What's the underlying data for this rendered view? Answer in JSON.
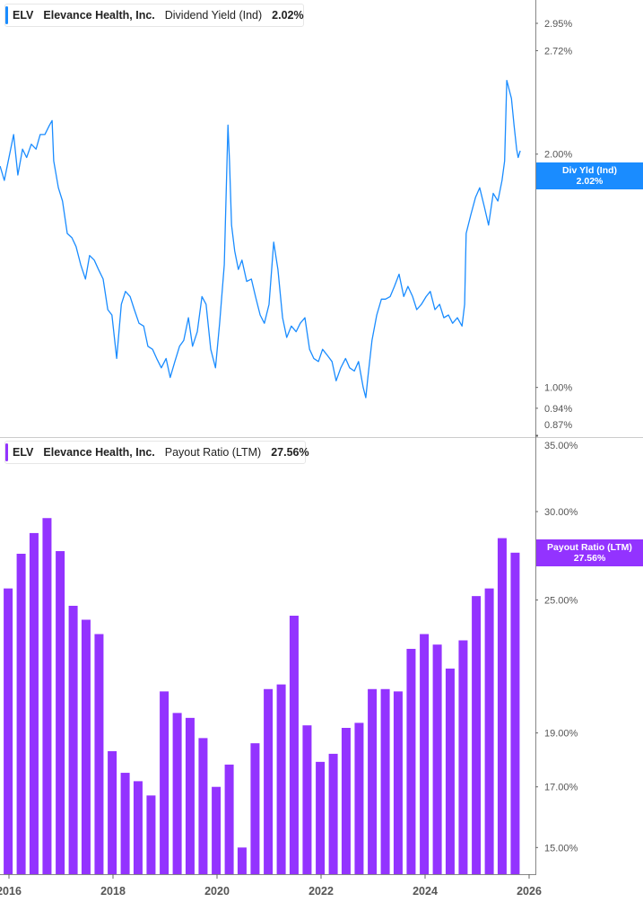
{
  "colors": {
    "yield": "#1a8cff",
    "payout": "#9333ff",
    "axis": "#888888",
    "grid": "#dddddd"
  },
  "top_legend": {
    "ticker": "ELV",
    "company": "Elevance Health, Inc.",
    "metric": "Dividend Yield (Ind)",
    "value": "2.02%"
  },
  "bottom_legend": {
    "ticker": "ELV",
    "company": "Elevance Health, Inc.",
    "metric": "Payout Ratio (LTM)",
    "value": "27.56%"
  },
  "top_tag": {
    "label": "Div Yld (Ind)",
    "value": "2.02%"
  },
  "bottom_tag": {
    "label": "Payout Ratio (LTM)",
    "value": "27.56%"
  },
  "chart_data": [
    {
      "type": "line",
      "scale": "log",
      "series_name": "Dividend Yield (Ind)",
      "unit": "%",
      "y_ticks": [
        "2.95%",
        "2.72%",
        "2.00%",
        "1.00%",
        "0.94%",
        "0.87%"
      ],
      "y_tick_values": [
        2.95,
        2.72,
        2.0,
        1.0,
        0.94,
        0.87
      ],
      "ylim": [
        0.87,
        3.05
      ],
      "points": [
        [
          2015.83,
          1.93
        ],
        [
          2015.91,
          1.85
        ],
        [
          2016.0,
          1.98
        ],
        [
          2016.09,
          2.12
        ],
        [
          2016.17,
          1.88
        ],
        [
          2016.26,
          2.03
        ],
        [
          2016.34,
          1.98
        ],
        [
          2016.43,
          2.06
        ],
        [
          2016.52,
          2.03
        ],
        [
          2016.6,
          2.12
        ],
        [
          2016.69,
          2.12
        ],
        [
          2016.78,
          2.18
        ],
        [
          2016.83,
          2.21
        ],
        [
          2016.86,
          1.96
        ],
        [
          2016.95,
          1.81
        ],
        [
          2017.03,
          1.74
        ],
        [
          2017.12,
          1.58
        ],
        [
          2017.21,
          1.56
        ],
        [
          2017.29,
          1.52
        ],
        [
          2017.38,
          1.44
        ],
        [
          2017.47,
          1.38
        ],
        [
          2017.55,
          1.48
        ],
        [
          2017.64,
          1.46
        ],
        [
          2017.72,
          1.42
        ],
        [
          2017.81,
          1.38
        ],
        [
          2017.9,
          1.26
        ],
        [
          2017.98,
          1.24
        ],
        [
          2018.07,
          1.09
        ],
        [
          2018.16,
          1.28
        ],
        [
          2018.24,
          1.33
        ],
        [
          2018.33,
          1.31
        ],
        [
          2018.41,
          1.26
        ],
        [
          2018.5,
          1.21
        ],
        [
          2018.59,
          1.2
        ],
        [
          2018.67,
          1.13
        ],
        [
          2018.76,
          1.12
        ],
        [
          2018.84,
          1.09
        ],
        [
          2018.93,
          1.06
        ],
        [
          2019.02,
          1.09
        ],
        [
          2019.1,
          1.03
        ],
        [
          2019.19,
          1.08
        ],
        [
          2019.28,
          1.13
        ],
        [
          2019.36,
          1.15
        ],
        [
          2019.45,
          1.23
        ],
        [
          2019.53,
          1.13
        ],
        [
          2019.62,
          1.18
        ],
        [
          2019.71,
          1.31
        ],
        [
          2019.79,
          1.28
        ],
        [
          2019.88,
          1.12
        ],
        [
          2019.97,
          1.06
        ],
        [
          2020.05,
          1.21
        ],
        [
          2020.14,
          1.44
        ],
        [
          2020.21,
          2.18
        ],
        [
          2020.24,
          1.96
        ],
        [
          2020.28,
          1.62
        ],
        [
          2020.34,
          1.5
        ],
        [
          2020.41,
          1.42
        ],
        [
          2020.48,
          1.46
        ],
        [
          2020.57,
          1.37
        ],
        [
          2020.66,
          1.38
        ],
        [
          2020.74,
          1.31
        ],
        [
          2020.83,
          1.24
        ],
        [
          2020.91,
          1.21
        ],
        [
          2021.0,
          1.28
        ],
        [
          2021.09,
          1.54
        ],
        [
          2021.17,
          1.42
        ],
        [
          2021.26,
          1.23
        ],
        [
          2021.34,
          1.16
        ],
        [
          2021.43,
          1.2
        ],
        [
          2021.52,
          1.18
        ],
        [
          2021.6,
          1.21
        ],
        [
          2021.69,
          1.23
        ],
        [
          2021.78,
          1.12
        ],
        [
          2021.86,
          1.09
        ],
        [
          2021.95,
          1.08
        ],
        [
          2022.03,
          1.12
        ],
        [
          2022.12,
          1.1
        ],
        [
          2022.21,
          1.08
        ],
        [
          2022.29,
          1.02
        ],
        [
          2022.38,
          1.06
        ],
        [
          2022.47,
          1.09
        ],
        [
          2022.55,
          1.06
        ],
        [
          2022.64,
          1.05
        ],
        [
          2022.72,
          1.08
        ],
        [
          2022.81,
          1.0
        ],
        [
          2022.86,
          0.97
        ],
        [
          2022.9,
          1.03
        ],
        [
          2022.98,
          1.15
        ],
        [
          2023.07,
          1.24
        ],
        [
          2023.16,
          1.3
        ],
        [
          2023.24,
          1.3
        ],
        [
          2023.33,
          1.31
        ],
        [
          2023.41,
          1.35
        ],
        [
          2023.5,
          1.4
        ],
        [
          2023.59,
          1.31
        ],
        [
          2023.67,
          1.35
        ],
        [
          2023.76,
          1.31
        ],
        [
          2023.84,
          1.26
        ],
        [
          2023.93,
          1.28
        ],
        [
          2024.02,
          1.31
        ],
        [
          2024.1,
          1.33
        ],
        [
          2024.19,
          1.26
        ],
        [
          2024.28,
          1.28
        ],
        [
          2024.36,
          1.23
        ],
        [
          2024.45,
          1.24
        ],
        [
          2024.53,
          1.21
        ],
        [
          2024.62,
          1.23
        ],
        [
          2024.71,
          1.2
        ],
        [
          2024.76,
          1.28
        ],
        [
          2024.79,
          1.58
        ],
        [
          2024.88,
          1.67
        ],
        [
          2024.97,
          1.76
        ],
        [
          2025.05,
          1.81
        ],
        [
          2025.14,
          1.71
        ],
        [
          2025.22,
          1.62
        ],
        [
          2025.31,
          1.78
        ],
        [
          2025.4,
          1.74
        ],
        [
          2025.48,
          1.85
        ],
        [
          2025.53,
          1.96
        ],
        [
          2025.57,
          2.49
        ],
        [
          2025.66,
          2.36
        ],
        [
          2025.71,
          2.18
        ],
        [
          2025.76,
          2.03
        ],
        [
          2025.79,
          1.98
        ],
        [
          2025.83,
          2.02
        ]
      ]
    },
    {
      "type": "bar",
      "scale": "log",
      "series_name": "Payout Ratio (LTM)",
      "unit": "%",
      "y_ticks": [
        "35.00%",
        "30.00%",
        "25.00%",
        "19.00%",
        "17.00%",
        "15.00%"
      ],
      "y_tick_values": [
        35,
        30,
        25,
        19,
        17,
        15
      ],
      "ylim": [
        14.3,
        35
      ],
      "categories": [
        "2015-12-31",
        "2016-03-31",
        "2016-06-30",
        "2016-09-30",
        "2016-12-31",
        "2017-03-31",
        "2017-06-30",
        "2017-09-30",
        "2017-12-31",
        "2018-03-31",
        "2018-06-30",
        "2018-09-30",
        "2018-12-31",
        "2019-03-31",
        "2019-06-30",
        "2019-09-30",
        "2019-12-31",
        "2020-03-31",
        "2020-06-30",
        "2020-09-30",
        "2020-12-31",
        "2021-03-31",
        "2021-06-30",
        "2021-09-30",
        "2021-12-31",
        "2022-03-31",
        "2022-06-30",
        "2022-09-30",
        "2022-12-31",
        "2023-03-31",
        "2023-06-30",
        "2023-09-30",
        "2023-12-31",
        "2024-03-31",
        "2024-06-30",
        "2024-09-30",
        "2024-12-31",
        "2025-03-31",
        "2025-06-30",
        "2025-09-30"
      ],
      "values": [
        25.6,
        27.5,
        28.7,
        29.6,
        27.65,
        24.7,
        24.0,
        23.3,
        18.3,
        17.5,
        17.2,
        16.7,
        20.7,
        19.8,
        19.6,
        18.8,
        17.0,
        17.8,
        15.0,
        18.6,
        20.8,
        21.0,
        24.2,
        19.3,
        17.9,
        18.2,
        19.2,
        19.4,
        20.8,
        20.8,
        20.7,
        22.6,
        23.3,
        22.8,
        21.7,
        23.0,
        25.2,
        25.6,
        28.4,
        27.56
      ]
    }
  ],
  "x_axis": {
    "ticks": [
      "2016",
      "2018",
      "2020",
      "2022",
      "2024",
      "2026"
    ],
    "tick_values": [
      2016,
      2018,
      2020,
      2022,
      2024,
      2026
    ]
  }
}
